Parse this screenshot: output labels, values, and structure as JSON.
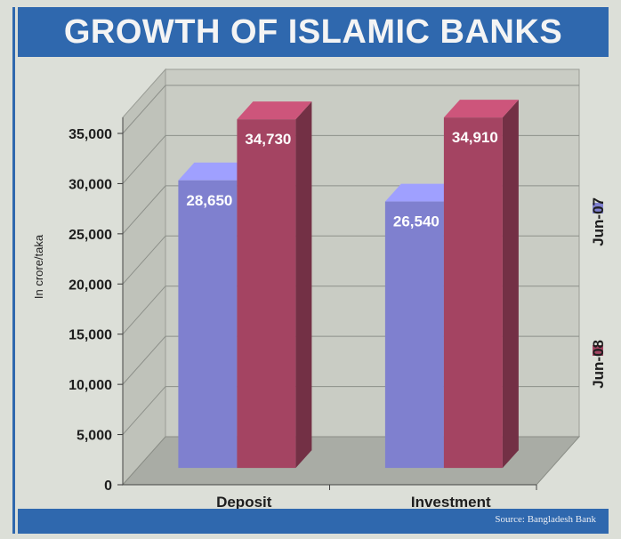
{
  "title": "GROWTH OF ISLAMIC BANKS",
  "source": "Source: Bangladesh Bank",
  "chart_data": {
    "type": "bar",
    "title": "GROWTH OF ISLAMIC BANKS",
    "xlabel": "",
    "ylabel": "In crore/taka",
    "categories": [
      "Deposit",
      "Investment"
    ],
    "series": [
      {
        "name": "Jun-07",
        "values": [
          28650,
          26540
        ],
        "labels": [
          "28,650",
          "26,540"
        ],
        "color": "#7f80cf"
      },
      {
        "name": "Jun-08",
        "values": [
          34730,
          34910
        ],
        "labels": [
          "34,730",
          "34,910"
        ],
        "color": "#a44462"
      }
    ],
    "ylim": [
      0,
      35000
    ],
    "yticks": [
      0,
      5000,
      10000,
      15000,
      20000,
      25000,
      30000,
      35000
    ],
    "ytick_labels": [
      "0",
      "5,000",
      "10,000",
      "15,000",
      "20,000",
      "25,000",
      "30,000",
      "35,000"
    ],
    "grid": true,
    "legend_placement": "right",
    "style": "3d"
  }
}
